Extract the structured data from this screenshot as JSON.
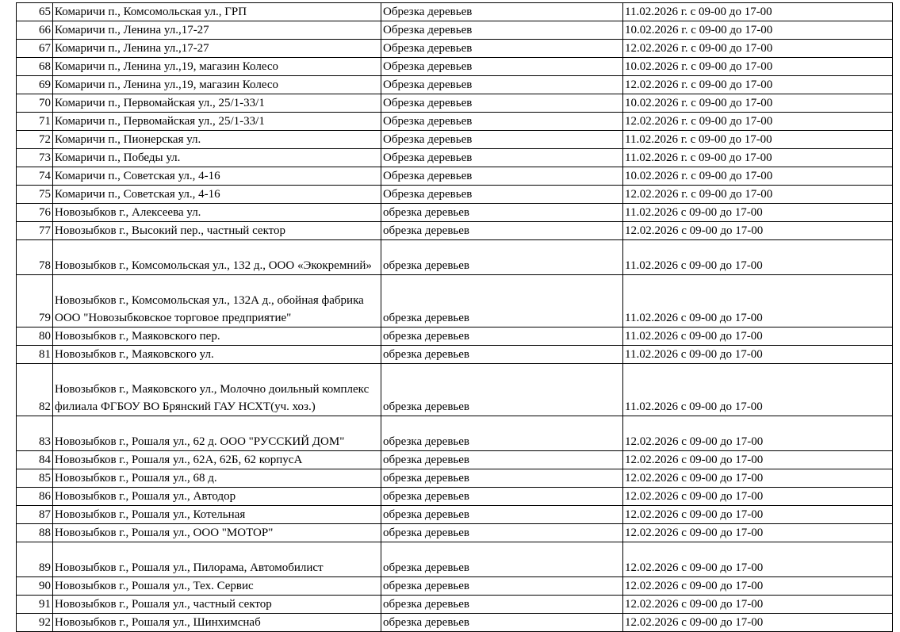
{
  "table": {
    "rows": [
      [
        "65",
        "Комаричи п., Комсомольская ул., ГРП",
        "Обрезка деревьев",
        "11.02.2026 г. с 09-00 до 17-00"
      ],
      [
        "66",
        "Комаричи п., Ленина ул.,17-27",
        "Обрезка деревьев",
        "10.02.2026 г. с 09-00 до 17-00"
      ],
      [
        "67",
        "Комаричи п., Ленина ул.,17-27",
        "Обрезка деревьев",
        "12.02.2026 г. с 09-00 до 17-00"
      ],
      [
        "68",
        "Комаричи п., Ленина ул.,19, магазин Колесо",
        "Обрезка деревьев",
        "10.02.2026 г. с 09-00 до 17-00"
      ],
      [
        "69",
        "Комаричи п., Ленина ул.,19, магазин Колесо",
        "Обрезка деревьев",
        "12.02.2026 г. с 09-00 до 17-00"
      ],
      [
        "70",
        "Комаричи п., Первомайская ул., 25/1-33/1",
        "Обрезка деревьев",
        "10.02.2026 г. с 09-00 до 17-00"
      ],
      [
        "71",
        "Комаричи п., Первомайская ул., 25/1-33/1",
        "Обрезка деревьев",
        "12.02.2026 г. с 09-00 до 17-00"
      ],
      [
        "72",
        "Комаричи п., Пионерская ул.",
        "Обрезка деревьев",
        "11.02.2026 г. с 09-00 до 17-00"
      ],
      [
        "73",
        "Комаричи п., Победы ул.",
        "Обрезка деревьев",
        "11.02.2026 г. с 09-00 до 17-00"
      ],
      [
        "74",
        "Комаричи п., Советская ул., 4-16",
        "Обрезка деревьев",
        "10.02.2026 г. с 09-00 до 17-00"
      ],
      [
        "75",
        "Комаричи п., Советская ул., 4-16",
        "Обрезка деревьев",
        "12.02.2026 г. с 09-00 до 17-00"
      ],
      [
        "76",
        "Новозыбков г., Алексеева ул.",
        "обрезка деревьев",
        "11.02.2026 с 09-00 до 17-00"
      ],
      [
        "77",
        "Новозыбков г., Высокий пер., частный сектор",
        "обрезка деревьев",
        "12.02.2026 с 09-00 до 17-00"
      ],
      [
        "78",
        "Новозыбков г., Комсомольская ул., 132 д., ООО «Экокремний»",
        "обрезка деревьев",
        "11.02.2026 с 09-00 до 17-00"
      ],
      [
        "79",
        "Новозыбков г., Комсомольская ул., 132А д., обойная фабрика ООО \"Новозыбковское торговое предприятие\"",
        "обрезка деревьев",
        "11.02.2026 с 09-00 до 17-00"
      ],
      [
        "80",
        "Новозыбков г., Маяковского пер.",
        "обрезка деревьев",
        "11.02.2026 с 09-00 до 17-00"
      ],
      [
        "81",
        "Новозыбков г., Маяковского ул.",
        "обрезка деревьев",
        "11.02.2026 с 09-00 до 17-00"
      ],
      [
        "82",
        "Новозыбков г., Маяковского ул., Молочно доильный комплекс филиала ФГБОУ ВО Брянский ГАУ НСХТ(уч. хоз.)",
        "обрезка деревьев",
        "11.02.2026 с 09-00 до 17-00"
      ],
      [
        "83",
        "Новозыбков г., Рошаля ул., 62 д. ООО \"РУССКИЙ ДОМ\"",
        "обрезка деревьев",
        "12.02.2026 с 09-00 до 17-00"
      ],
      [
        "84",
        "Новозыбков г., Рошаля ул., 62А, 62Б, 62 корпусА",
        "обрезка деревьев",
        "12.02.2026 с 09-00 до 17-00"
      ],
      [
        "85",
        "Новозыбков г., Рошаля ул., 68 д.",
        "обрезка деревьев",
        "12.02.2026 с 09-00 до 17-00"
      ],
      [
        "86",
        "Новозыбков г., Рошаля ул., Автодор",
        "обрезка деревьев",
        "12.02.2026 с 09-00 до 17-00"
      ],
      [
        "87",
        "Новозыбков г., Рошаля ул., Котельная",
        "обрезка деревьев",
        "12.02.2026 с 09-00 до 17-00"
      ],
      [
        "88",
        "Новозыбков г., Рошаля ул., ООО \"МОТОР\"",
        "обрезка деревьев",
        "12.02.2026 с 09-00 до 17-00"
      ],
      [
        "89",
        "Новозыбков г., Рошаля ул., Пилорама, Автомобилист",
        "обрезка деревьев",
        "12.02.2026 с 09-00 до 17-00"
      ],
      [
        "90",
        "Новозыбков г., Рошаля ул., Тех. Сервис",
        "обрезка деревьев",
        "12.02.2026 с 09-00 до 17-00"
      ],
      [
        "91",
        "Новозыбков г., Рошаля ул., частный сектор",
        "обрезка деревьев",
        "12.02.2026 с 09-00 до 17-00"
      ],
      [
        "92",
        "Новозыбков г., Рошаля ул., Шинхимснаб",
        "обрезка деревьев",
        "12.02.2026 с 09-00 до 17-00"
      ]
    ]
  }
}
